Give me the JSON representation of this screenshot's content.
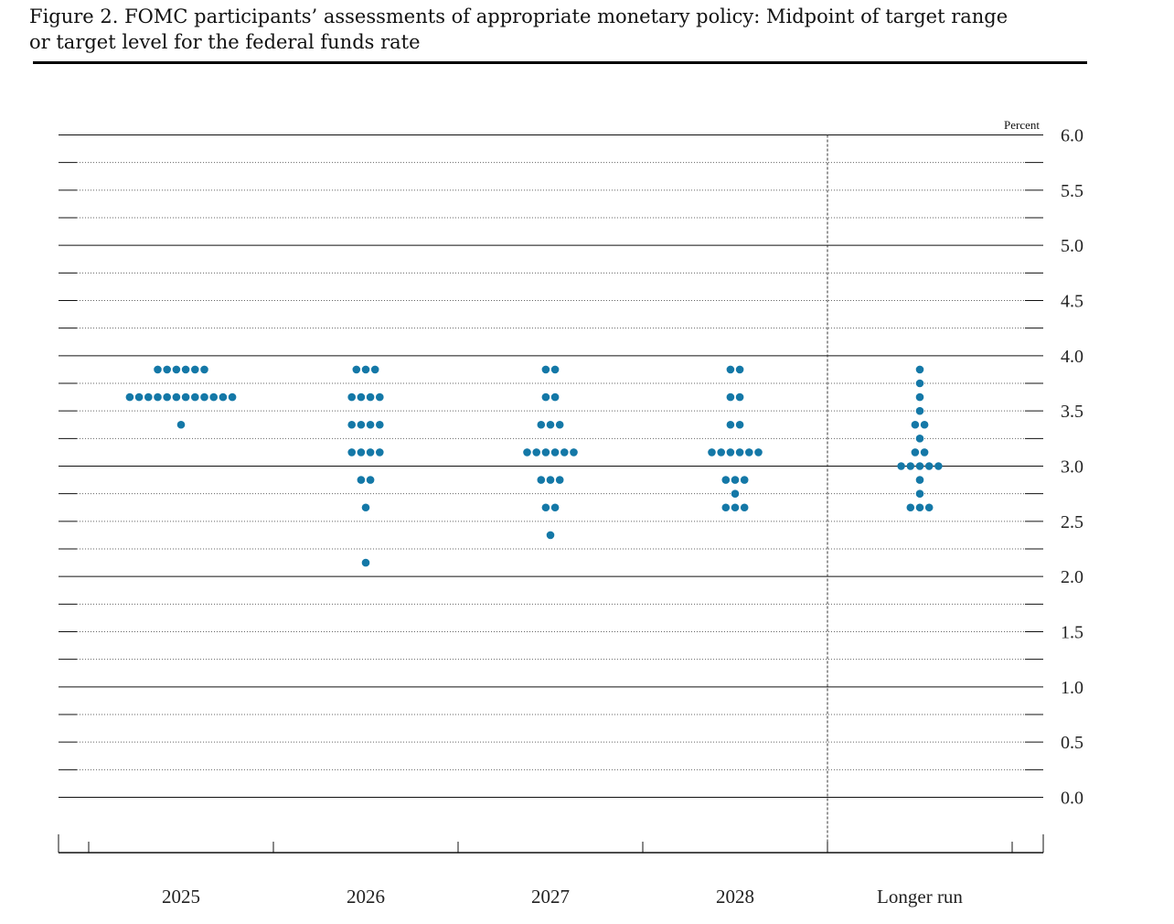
{
  "figure": {
    "title_line1": "Figure 2. FOMC participants’ assessments of appropriate monetary policy: Midpoint of target range",
    "title_line2": "or target level for the federal funds rate"
  },
  "chart_data": {
    "type": "scatter",
    "unit": "Percent",
    "ylim": [
      0,
      6
    ],
    "yticks": [
      "6.0",
      "5.5",
      "5.0",
      "4.5",
      "4.0",
      "3.5",
      "3.0",
      "2.5",
      "2.0",
      "1.5",
      "1.0",
      "0.5",
      "0.0"
    ],
    "categories": [
      "2025",
      "2026",
      "2027",
      "2028",
      "Longer run"
    ],
    "dot_color": "#1478a7",
    "series": [
      {
        "category": "2025",
        "points": [
          {
            "y": 3.875,
            "count": 6
          },
          {
            "y": 3.625,
            "count": 12
          },
          {
            "y": 3.375,
            "count": 1
          }
        ]
      },
      {
        "category": "2026",
        "points": [
          {
            "y": 3.875,
            "count": 3
          },
          {
            "y": 3.625,
            "count": 4
          },
          {
            "y": 3.375,
            "count": 4
          },
          {
            "y": 3.125,
            "count": 4
          },
          {
            "y": 2.875,
            "count": 2
          },
          {
            "y": 2.625,
            "count": 1
          },
          {
            "y": 2.125,
            "count": 1
          }
        ]
      },
      {
        "category": "2027",
        "points": [
          {
            "y": 3.875,
            "count": 2
          },
          {
            "y": 3.625,
            "count": 2
          },
          {
            "y": 3.375,
            "count": 3
          },
          {
            "y": 3.125,
            "count": 6
          },
          {
            "y": 2.875,
            "count": 3
          },
          {
            "y": 2.625,
            "count": 2
          },
          {
            "y": 2.375,
            "count": 1
          }
        ]
      },
      {
        "category": "2028",
        "points": [
          {
            "y": 3.875,
            "count": 2
          },
          {
            "y": 3.625,
            "count": 2
          },
          {
            "y": 3.375,
            "count": 2
          },
          {
            "y": 3.125,
            "count": 6
          },
          {
            "y": 2.875,
            "count": 3
          },
          {
            "y": 2.75,
            "count": 1
          },
          {
            "y": 2.625,
            "count": 3
          }
        ]
      },
      {
        "category": "Longer run",
        "points": [
          {
            "y": 3.875,
            "count": 1
          },
          {
            "y": 3.75,
            "count": 1
          },
          {
            "y": 3.625,
            "count": 1
          },
          {
            "y": 3.5,
            "count": 1
          },
          {
            "y": 3.375,
            "count": 2
          },
          {
            "y": 3.25,
            "count": 1
          },
          {
            "y": 3.125,
            "count": 2
          },
          {
            "y": 3.0,
            "count": 5
          },
          {
            "y": 2.875,
            "count": 1
          },
          {
            "y": 2.75,
            "count": 1
          },
          {
            "y": 2.625,
            "count": 3
          }
        ]
      }
    ]
  }
}
